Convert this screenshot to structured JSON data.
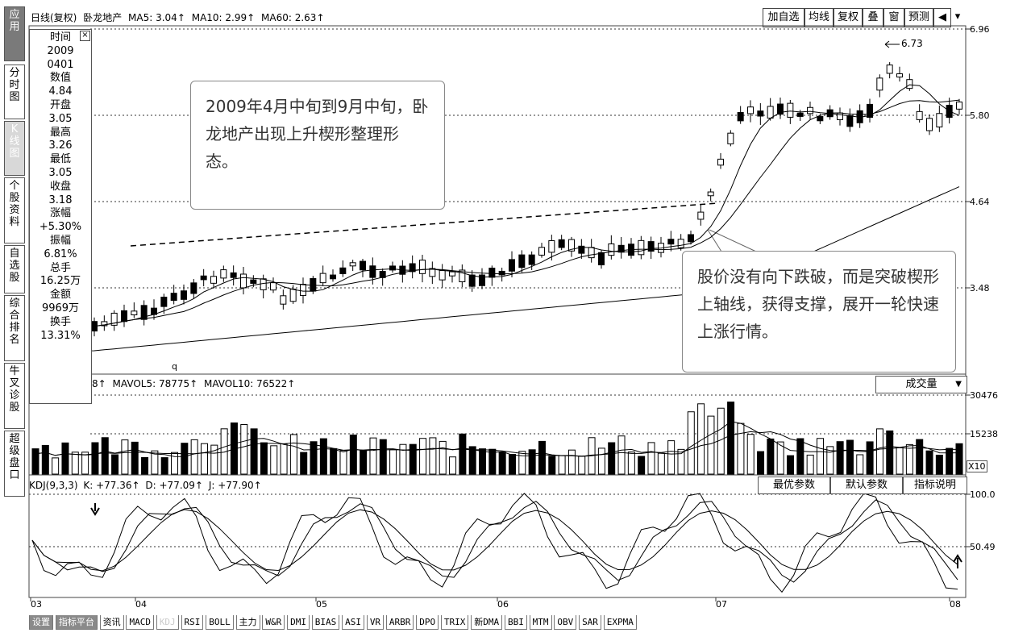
{
  "header": {
    "period": "日线(复权)",
    "stock": "卧龙地产",
    "ma5": "MA5: 3.04",
    "ma10": "MA10: 2.99",
    "ma60": "MA60: 2.63",
    "arrow": "↑"
  },
  "toolbar": [
    "加自选",
    "均线",
    "复权",
    "叠",
    "窗",
    "预测",
    "◀",
    "▾"
  ],
  "left_nav": [
    "应用",
    "分时图",
    "K线图",
    "个股资料",
    "自选股",
    "综合排名",
    "牛叉诊股",
    "超级盘口"
  ],
  "info_panel": [
    "时间",
    "2009",
    "0401",
    "数值",
    "4.84",
    "开盘",
    "3.05",
    "最高",
    "3.26",
    "最低",
    "3.05",
    "收盘",
    "3.18",
    "涨幅",
    "+5.30%",
    "振幅",
    "6.81%",
    "总手",
    "16.25万",
    "金额",
    "9969万",
    "换手",
    "13.31%"
  ],
  "callouts": {
    "top": "2009年4月中旬到9月中旬，卧龙地产出现上升楔形整理形态。",
    "bottom": "股价没有向下跌破，而是突破楔形上轴线，获得支撑，展开一轮快速上涨行情。"
  },
  "price_axis": [
    "6.96",
    "5.80",
    "4.64",
    "3.48"
  ],
  "peak_label": "6.73",
  "q_mark": "q",
  "volume": {
    "header": "8",
    "mavol5": "MAVOL5: 78775",
    "mavol10": "MAVOL10: 76522",
    "dropdown": "成交量",
    "axis": [
      "30476",
      "15238"
    ],
    "unit": "X10"
  },
  "kdj": {
    "header": "KDJ(9,3,3)",
    "k": "K: +77.36",
    "d": "D: +77.09",
    "j": "J: +77.90",
    "buttons": [
      "最优参数",
      "默认参数",
      "指标说明"
    ],
    "axis": [
      "100.0",
      "50.49"
    ]
  },
  "x_axis": [
    "03",
    "04",
    "05",
    "06",
    "07",
    "08"
  ],
  "tabs": [
    "设置",
    "指标平台",
    "资讯",
    "MACD",
    "KDJ",
    "RSI",
    "BOLL",
    "主力",
    "W&R",
    "DMI",
    "BIAS",
    "ASI",
    "VR",
    "ARBR",
    "DPO",
    "TRIX",
    "新DMA",
    "BBI",
    "MTM",
    "OBV",
    "SAR",
    "EXPMA"
  ],
  "colors": {
    "up": "#ffffff",
    "down": "#000000",
    "grid": "#555555"
  }
}
